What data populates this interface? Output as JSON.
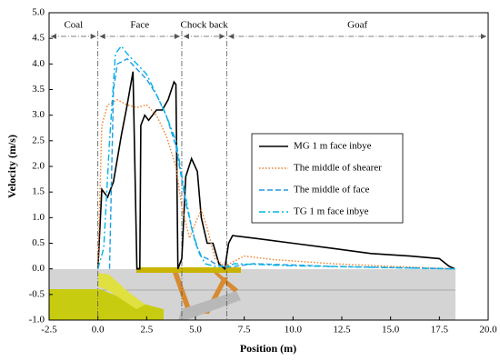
{
  "chart_data": {
    "type": "line",
    "xlabel": "Position (m)",
    "ylabel": "Velocity (m/s)",
    "xlim": [
      -2.5,
      20.0
    ],
    "ylim": [
      -1.0,
      5.0
    ],
    "xticks": [
      -2.5,
      {
        "value": 0,
        "label": "0.0"
      },
      2.5,
      {
        "value": 5,
        "label": "5.0"
      },
      7.5,
      {
        "value": 10,
        "label": "10.0"
      },
      12.5,
      {
        "value": 15,
        "label": "15.0"
      },
      17.5,
      {
        "value": 20,
        "label": "20.0"
      }
    ],
    "yticks": [
      {
        "value": -1,
        "label": "-1.0"
      },
      -0.5,
      {
        "value": 0,
        "label": "0.0"
      },
      0.5,
      {
        "value": 1,
        "label": "1.0"
      },
      1.5,
      {
        "value": 2,
        "label": "2.0"
      },
      2.5,
      {
        "value": 3,
        "label": "3.0"
      },
      3.5,
      {
        "value": 4,
        "label": "4.0"
      },
      4.5,
      {
        "value": 5,
        "label": "5.0"
      }
    ],
    "grid": false,
    "legend": "right",
    "regions": [
      {
        "label": "Coal",
        "start": -2.5,
        "end": 0
      },
      {
        "label": "Face",
        "start": 0,
        "end": 4.3
      },
      {
        "label": "Chock back",
        "start": 4.3,
        "end": 6.6
      },
      {
        "label": "Goaf",
        "start": 6.6,
        "end": 20
      }
    ],
    "series": [
      {
        "name": "MG 1 m face inbye",
        "color": "#000000",
        "dash": "solid",
        "x": [
          0,
          0.2,
          0.5,
          0.8,
          1.2,
          1.5,
          1.8,
          2.0,
          2.15,
          2.2,
          2.4,
          2.6,
          3.0,
          3.3,
          3.6,
          3.9,
          4.0,
          4.1,
          4.3,
          4.5,
          4.8,
          5.1,
          5.3,
          5.6,
          5.9,
          6.2,
          6.5,
          6.7,
          6.9,
          8,
          10,
          12,
          14,
          16,
          17.5,
          18.0,
          18.3
        ],
        "values": [
          0,
          1.55,
          1.4,
          1.7,
          2.6,
          3.2,
          3.85,
          0,
          0,
          2.8,
          3.0,
          2.9,
          3.1,
          3.1,
          3.3,
          3.65,
          3.6,
          0,
          0.2,
          1.8,
          2.15,
          1.9,
          1.0,
          0.5,
          0.5,
          0.1,
          0,
          0.5,
          0.65,
          0.6,
          0.5,
          0.4,
          0.3,
          0.25,
          0.2,
          0.05,
          0
        ]
      },
      {
        "name": "The middle of shearer",
        "color": "#f07d28",
        "dash": "dotted",
        "x": [
          0,
          0.2,
          0.5,
          1.0,
          1.5,
          2.0,
          2.5,
          3.0,
          3.5,
          4.0,
          4.3,
          4.7,
          5.0,
          5.3,
          5.6,
          6.0,
          6.5,
          7.0,
          7.5,
          9,
          12,
          15,
          18.3
        ],
        "values": [
          0,
          2.8,
          3.2,
          3.3,
          3.2,
          3.15,
          3.2,
          3.0,
          2.6,
          2.0,
          1.2,
          0.6,
          0.9,
          1.15,
          0.8,
          0.2,
          0.05,
          0.15,
          0.25,
          0.18,
          0.1,
          0.05,
          0
        ]
      },
      {
        "name": "The middle of face",
        "color": "#1f9be6",
        "dash": "dashed",
        "x": [
          0.6,
          0.8,
          1.0,
          1.5,
          2.0,
          2.5,
          3.0,
          3.5,
          4.0,
          4.5,
          5.0,
          5.3,
          5.6,
          6.0,
          6.5,
          7.0,
          8,
          12,
          18.3
        ],
        "values": [
          0,
          3.5,
          4.0,
          4.1,
          3.9,
          3.7,
          3.4,
          3.0,
          2.4,
          1.3,
          0.5,
          0.25,
          0.2,
          0.1,
          0.03,
          0.05,
          0.1,
          0.05,
          0
        ]
      },
      {
        "name": "TG 1 m face inbye",
        "color": "#00b4e6",
        "dash": "dashdot",
        "x": [
          0,
          0.3,
          0.6,
          0.9,
          1.2,
          1.5,
          2.0,
          2.5,
          3.0,
          3.5,
          4.0,
          4.4,
          4.8,
          5.2,
          5.5,
          6.0,
          6.6,
          7,
          10,
          18.3
        ],
        "values": [
          0,
          0.4,
          2.5,
          4.2,
          4.35,
          4.2,
          4.0,
          3.8,
          3.4,
          3.0,
          2.5,
          1.6,
          0.8,
          0.3,
          0.1,
          0.05,
          0.05,
          0.1,
          0.06,
          0
        ]
      }
    ]
  }
}
